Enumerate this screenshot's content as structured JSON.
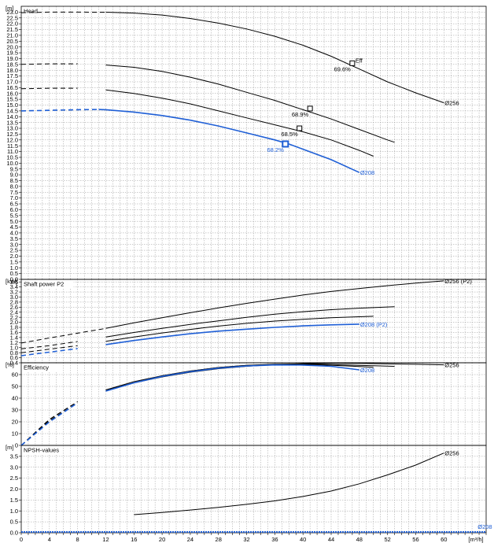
{
  "chart_data": [
    {
      "type": "line",
      "title": "Head",
      "unit_label": "[m]",
      "xlim": [
        0,
        66
      ],
      "ylim": [
        0,
        23.5
      ],
      "yticks": [
        "0.0",
        "0.5",
        "1.0",
        "1.5",
        "2.0",
        "2.5",
        "3.0",
        "3.5",
        "4.0",
        "4.5",
        "5.0",
        "5.5",
        "6.0",
        "6.5",
        "7.0",
        "7.5",
        "8.0",
        "8.5",
        "9.0",
        "9.5",
        "10.0",
        "10.5",
        "11.0",
        "11.5",
        "12.0",
        "12.5",
        "13.0",
        "13.5",
        "14.0",
        "14.5",
        "15.0",
        "15.5",
        "16.0",
        "16.5",
        "17.0",
        "17.5",
        "18.0",
        "18.5",
        "19.0",
        "19.5",
        "20.0",
        "20.5",
        "21.0",
        "21.5",
        "22.0",
        "22.5",
        "23.0"
      ],
      "series": [
        {
          "name": "Ø256",
          "color": "#000000",
          "x": [
            0,
            4,
            8,
            12,
            13,
            16,
            20,
            24,
            28,
            32,
            36,
            40,
            44,
            48,
            52,
            56,
            60
          ],
          "y": [
            22.95,
            23.0,
            23.0,
            22.99,
            22.98,
            22.92,
            22.75,
            22.45,
            22.05,
            21.55,
            20.92,
            20.15,
            19.2,
            18.1,
            17.0,
            16.05,
            15.2
          ]
        },
        {
          "name": "",
          "color": "#000000",
          "x": [
            0,
            4,
            8,
            12,
            16,
            20,
            24,
            28,
            32,
            36,
            40,
            44,
            48,
            52,
            53
          ],
          "y": [
            18.5,
            18.55,
            18.55,
            18.45,
            18.25,
            17.9,
            17.4,
            16.8,
            16.1,
            15.4,
            14.6,
            13.8,
            12.9,
            12.0,
            11.8
          ]
        },
        {
          "name": "",
          "color": "#000000",
          "x": [
            0,
            4,
            8,
            12,
            16,
            20,
            24,
            28,
            32,
            36,
            40,
            44,
            48,
            50
          ],
          "y": [
            16.4,
            16.45,
            16.45,
            16.3,
            16.0,
            15.6,
            15.1,
            14.5,
            13.9,
            13.3,
            12.7,
            12.0,
            11.1,
            10.6
          ]
        },
        {
          "name": "Ø208",
          "color": "#1f5fd6",
          "x": [
            0,
            4,
            8,
            11,
            12,
            16,
            20,
            24,
            28,
            32,
            36,
            38,
            40,
            44,
            48
          ],
          "y": [
            14.5,
            14.55,
            14.6,
            14.62,
            14.6,
            14.4,
            14.1,
            13.7,
            13.2,
            12.6,
            12.0,
            11.65,
            11.2,
            10.3,
            9.2
          ]
        }
      ],
      "dashed_until": [
        12,
        11,
        9,
        11
      ],
      "points": [
        {
          "label": "Eff",
          "sub": "69.6%",
          "x": 47,
          "y": 18.6,
          "color": "#000000"
        },
        {
          "label": "",
          "sub": "68.9%",
          "x": 41,
          "y": 14.7,
          "color": "#000000"
        },
        {
          "label": "",
          "sub": "68.5%",
          "x": 39.5,
          "y": 13.0,
          "color": "#000000"
        },
        {
          "label": "",
          "sub": "68.2%",
          "x": 37.5,
          "y": 11.65,
          "color": "#1f5fd6"
        }
      ],
      "end_labels": [
        {
          "text": "Ø256",
          "series": 0,
          "color": "#000000"
        },
        {
          "text": "Ø208",
          "series": 3,
          "color": "#1f5fd6"
        }
      ]
    },
    {
      "type": "line",
      "title": "Shaft power P2",
      "unit_label": "[kW]",
      "xlim": [
        0,
        66
      ],
      "ylim": [
        0.4,
        3.7
      ],
      "yticks": [
        "0.4",
        "0.6",
        "0.8",
        "1.0",
        "1.2",
        "1.4",
        "1.6",
        "1.8",
        "2.0",
        "2.2",
        "2.4",
        "2.6",
        "2.8",
        "3.0",
        "3.2",
        "3.4",
        "3.6"
      ],
      "series": [
        {
          "name": "Ø256 (P2)",
          "color": "#000000",
          "x": [
            0,
            4,
            8,
            12,
            16,
            20,
            24,
            28,
            32,
            36,
            40,
            44,
            48,
            52,
            56,
            60
          ],
          "y": [
            1.18,
            1.38,
            1.57,
            1.76,
            1.98,
            2.18,
            2.38,
            2.57,
            2.75,
            2.92,
            3.08,
            3.22,
            3.34,
            3.45,
            3.55,
            3.64
          ]
        },
        {
          "name": "",
          "color": "#000000",
          "x": [
            0,
            4,
            8,
            12,
            16,
            20,
            24,
            28,
            32,
            36,
            40,
            44,
            48,
            53
          ],
          "y": [
            0.95,
            1.08,
            1.24,
            1.42,
            1.6,
            1.76,
            1.92,
            2.06,
            2.2,
            2.32,
            2.42,
            2.5,
            2.56,
            2.62
          ]
        },
        {
          "name": "",
          "color": "#000000",
          "x": [
            0,
            4,
            8,
            12,
            16,
            20,
            24,
            28,
            32,
            36,
            40,
            44,
            48,
            50
          ],
          "y": [
            0.8,
            0.94,
            1.08,
            1.25,
            1.42,
            1.58,
            1.72,
            1.85,
            1.96,
            2.05,
            2.12,
            2.18,
            2.22,
            2.24
          ]
        },
        {
          "name": "Ø208 (P2)",
          "color": "#1f5fd6",
          "x": [
            0,
            4,
            8,
            12,
            16,
            20,
            24,
            28,
            32,
            36,
            40,
            44,
            48
          ],
          "y": [
            0.68,
            0.82,
            0.96,
            1.12,
            1.28,
            1.42,
            1.55,
            1.65,
            1.73,
            1.8,
            1.86,
            1.9,
            1.93
          ]
        }
      ],
      "dashed_until": [
        12,
        10,
        9,
        11
      ],
      "end_labels": [
        {
          "text": "Ø256 (P2)",
          "series": 0,
          "color": "#000000"
        },
        {
          "text": "Ø208 (P2)",
          "series": 3,
          "color": "#1f5fd6"
        }
      ]
    },
    {
      "type": "line",
      "title": "Efficiency",
      "unit_label": "[%]",
      "xlim": [
        0,
        66
      ],
      "ylim": [
        0,
        70
      ],
      "yticks": [
        "0",
        "10",
        "20",
        "30",
        "40",
        "50",
        "60"
      ],
      "series": [
        {
          "name": "Ø256",
          "color": "#000000",
          "x": [
            0,
            4,
            8,
            12,
            16,
            20,
            24,
            28,
            32,
            36,
            40,
            44,
            48,
            52,
            56,
            60
          ],
          "y": [
            0,
            22,
            37,
            47,
            53,
            58,
            62,
            65,
            67,
            68.5,
            69.3,
            69.6,
            69.5,
            69.1,
            68.7,
            68.3
          ]
        },
        {
          "name": "",
          "color": "#000000",
          "x": [
            0,
            4,
            8,
            12,
            16,
            20,
            24,
            28,
            32,
            36,
            40,
            44,
            48,
            53
          ],
          "y": [
            0,
            22,
            37,
            47,
            54,
            59,
            63,
            66,
            67.8,
            68.8,
            68.9,
            68.5,
            67.8,
            67.0
          ]
        },
        {
          "name": "",
          "color": "#000000",
          "x": [
            0,
            4,
            8,
            12,
            16,
            20,
            24,
            28,
            32,
            36,
            40,
            44,
            48,
            50
          ],
          "y": [
            0,
            21,
            36,
            46,
            53,
            59,
            63,
            66,
            67.8,
            68.5,
            68.5,
            67.9,
            66.8,
            66.2
          ]
        },
        {
          "name": "Ø208",
          "color": "#1f5fd6",
          "x": [
            0,
            4,
            8,
            12,
            16,
            20,
            24,
            28,
            32,
            36,
            40,
            44,
            48
          ],
          "y": [
            0,
            20,
            36,
            46,
            53,
            58.5,
            62.5,
            65.5,
            67.3,
            68.2,
            68.1,
            67.0,
            64.0
          ]
        }
      ],
      "dashed_until": [
        11,
        11,
        11,
        11
      ],
      "end_labels": [
        {
          "text": "Ø256",
          "series": 0,
          "color": "#000000"
        },
        {
          "text": "Ø208",
          "series": 3,
          "color": "#1f5fd6"
        }
      ]
    },
    {
      "type": "line",
      "title": "NPSH-values",
      "unit_label": "[m]",
      "xlim": [
        0,
        66
      ],
      "ylim": [
        0,
        4.0
      ],
      "yticks": [
        "0.0",
        "0.5",
        "1.0",
        "1.5",
        "2.0",
        "2.5",
        "3.0",
        "3.5"
      ],
      "series": [
        {
          "name": "Ø256",
          "color": "#000000",
          "x": [
            16,
            20,
            24,
            28,
            32,
            36,
            40,
            44,
            48,
            52,
            56,
            60
          ],
          "y": [
            0.83,
            0.93,
            1.04,
            1.16,
            1.3,
            1.46,
            1.66,
            1.91,
            2.24,
            2.65,
            3.1,
            3.65
          ]
        }
      ],
      "dashed_until": [
        0
      ],
      "end_labels": [
        {
          "text": "Ø256",
          "series": 0,
          "color": "#000000"
        }
      ],
      "extra_labels": [
        {
          "text": "Ø208",
          "x": 64.8,
          "y": 0.15,
          "color": "#1f5fd6"
        }
      ]
    }
  ],
  "x_axis": {
    "ticks": [
      "0",
      "4",
      "8",
      "12",
      "16",
      "20",
      "24",
      "28",
      "32",
      "36",
      "40",
      "44",
      "48",
      "52",
      "56",
      "60"
    ],
    "unit_label": "[m³/h]"
  }
}
